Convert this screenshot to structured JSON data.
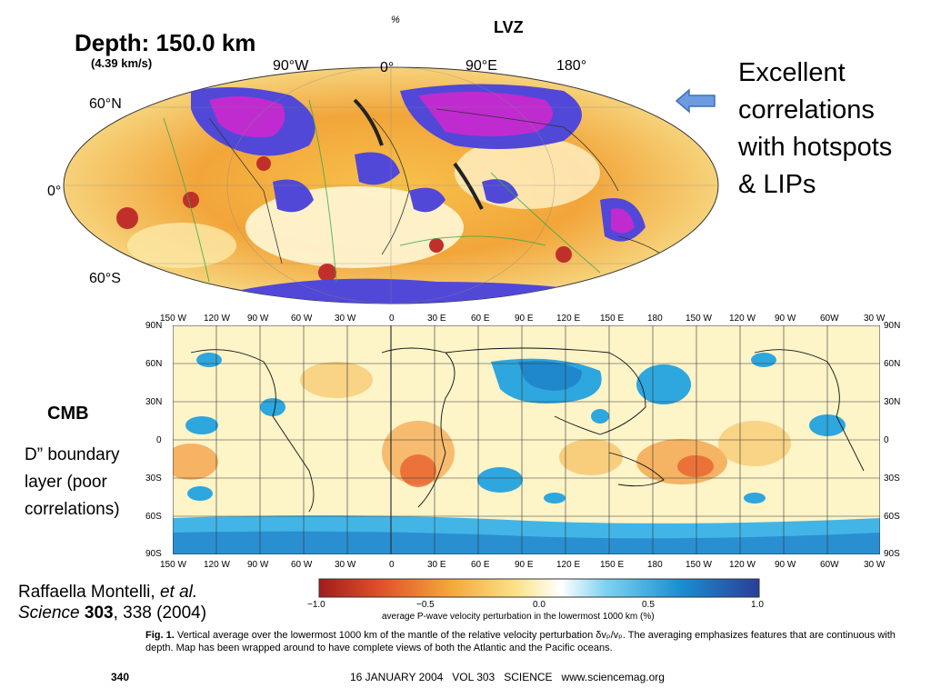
{
  "slide_title": "LVZ",
  "percent_mark": "%",
  "top_map": {
    "depth_label": "Depth: 150.0 km",
    "velocity_label": "(4.39 km/s)",
    "lon_labels": [
      "90°W",
      "0°",
      "90°E",
      "180°"
    ],
    "lat_labels": [
      "60°N",
      "0°",
      "60°S"
    ]
  },
  "annotation_right": {
    "lines": [
      "Excellent",
      "correlations",
      "with hotspots",
      "& LIPs"
    ]
  },
  "left_labels": {
    "cmb": "CMB",
    "note_lines": [
      "D” boundary",
      "layer (poor",
      "correlations)"
    ]
  },
  "bottom_map": {
    "lon_labels": [
      "150 W",
      "120 W",
      "90 W",
      "60 W",
      "30 W",
      "0",
      "30 E",
      "60 E",
      "90 E",
      "120 E",
      "150 E",
      "180",
      "150 W",
      "120 W",
      "90 W",
      "60W",
      "30 W"
    ],
    "lat_labels_left": [
      "90N",
      "60N",
      "30N",
      "0",
      "30S",
      "60S",
      "90S"
    ],
    "lat_labels_right": [
      "90N",
      "60N",
      "30N",
      "0",
      "30S",
      "60S",
      "90S"
    ]
  },
  "colorbar": {
    "ticks": [
      "−1.0",
      "−0.5",
      "0.0",
      "0.5",
      "1.0"
    ],
    "label": "average P-wave velocity perturbation in the lowermost 1000 km (%)",
    "colors": [
      "#a01d1d",
      "#e0512a",
      "#f4a83a",
      "#fbe38a",
      "#ffffff",
      "#7fd3f0",
      "#1a8fd1",
      "#2a3e9a"
    ]
  },
  "citation": {
    "author": "Raffaella Montelli,",
    "etal": "et al.",
    "journal": "Science",
    "volume": "303",
    "pages_year": ", 338 (2004)"
  },
  "caption": {
    "fig": "Fig. 1.",
    "text": "Vertical average over the lowermost 1000 km of the mantle of the relative velocity perturbation δvₚ/vₚ. The averaging emphasizes features that are continuous with depth. Map has been wrapped around to have complete views of both the Atlantic and the Pacific oceans."
  },
  "footer": {
    "page": "340",
    "info": "16 JANUARY 2004   VOL 303   SCIENCE   www.sciencemag.org"
  }
}
